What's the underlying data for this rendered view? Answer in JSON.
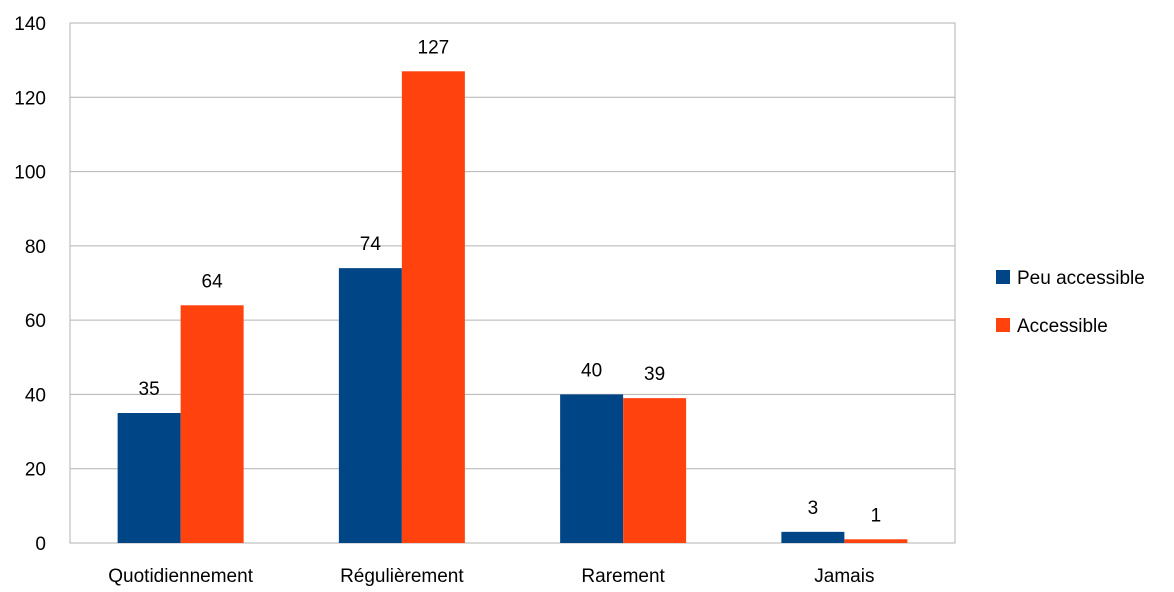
{
  "chart_data": {
    "type": "bar",
    "title": "",
    "xlabel": "",
    "ylabel": "",
    "categories": [
      "Quotidiennement",
      "Régulièrement",
      "Rarement",
      "Jamais"
    ],
    "series": [
      {
        "name": "Peu accessible",
        "values": [
          35,
          74,
          40,
          3
        ],
        "color": "#004586"
      },
      {
        "name": "Accessible",
        "values": [
          64,
          127,
          39,
          1
        ],
        "color": "#FF420E"
      }
    ],
    "ylim": [
      0,
      140
    ],
    "yticks": [
      0,
      20,
      40,
      60,
      80,
      100,
      120,
      140
    ],
    "grid": true,
    "legend_position": "right",
    "data_labels": true
  }
}
